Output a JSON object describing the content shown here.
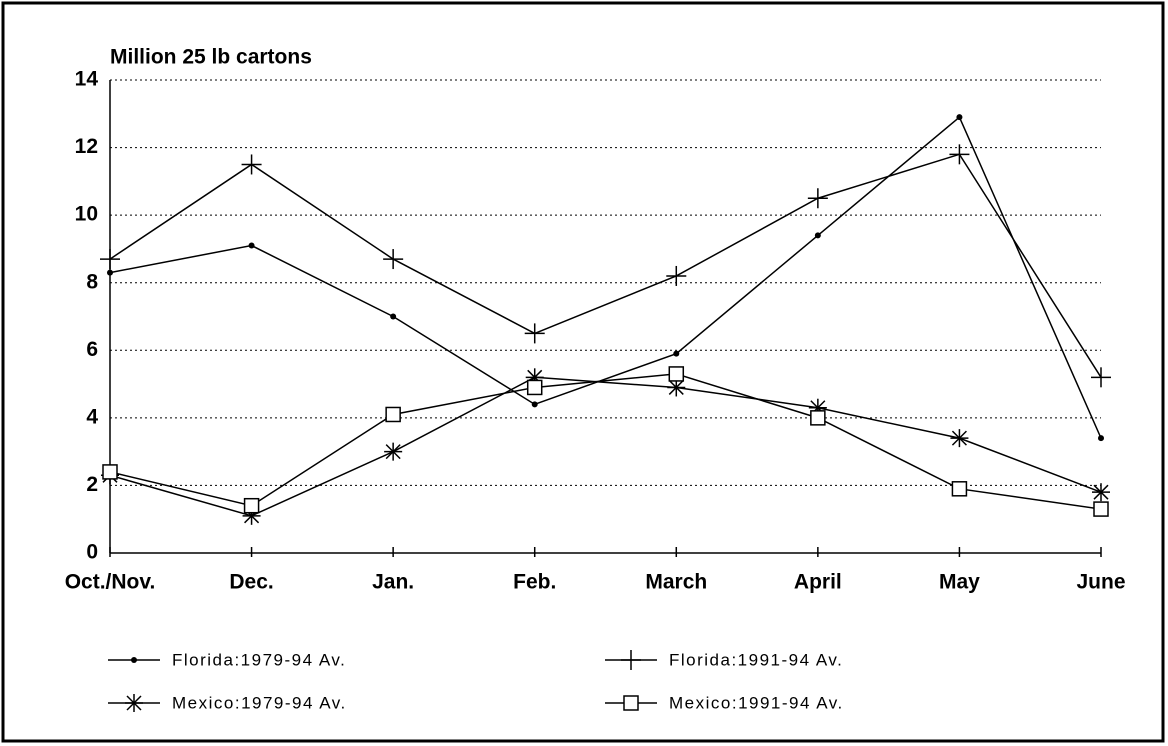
{
  "chart_data": {
    "type": "line",
    "y_label": "Million 25 lb cartons",
    "categories": [
      "Oct./Nov.",
      "Dec.",
      "Jan.",
      "Feb.",
      "March",
      "April",
      "May",
      "June"
    ],
    "series": [
      {
        "name": "Florida:1979-94 Av.",
        "color": "#000000",
        "marker": "dot",
        "values": [
          8.3,
          9.1,
          7.0,
          4.4,
          5.9,
          9.4,
          12.9,
          3.4
        ]
      },
      {
        "name": "Florida:1991-94 Av.",
        "color": "#000000",
        "marker": "plus",
        "values": [
          8.7,
          11.5,
          8.7,
          6.5,
          8.2,
          10.5,
          11.8,
          5.2
        ]
      },
      {
        "name": "Mexico:1979-94 Av.",
        "color": "#000000",
        "marker": "asterisk",
        "values": [
          2.3,
          1.1,
          3.0,
          5.2,
          4.9,
          4.3,
          3.4,
          1.8
        ]
      },
      {
        "name": "Mexico:1991-94 Av.",
        "color": "#000000",
        "marker": "square",
        "values": [
          2.4,
          1.4,
          4.1,
          4.9,
          5.3,
          4.0,
          1.9,
          1.3
        ]
      }
    ],
    "ylim": [
      0,
      14
    ],
    "yticks": [
      0,
      2,
      4,
      6,
      8,
      10,
      12,
      14
    ],
    "grid": true,
    "legend": "bottom"
  }
}
